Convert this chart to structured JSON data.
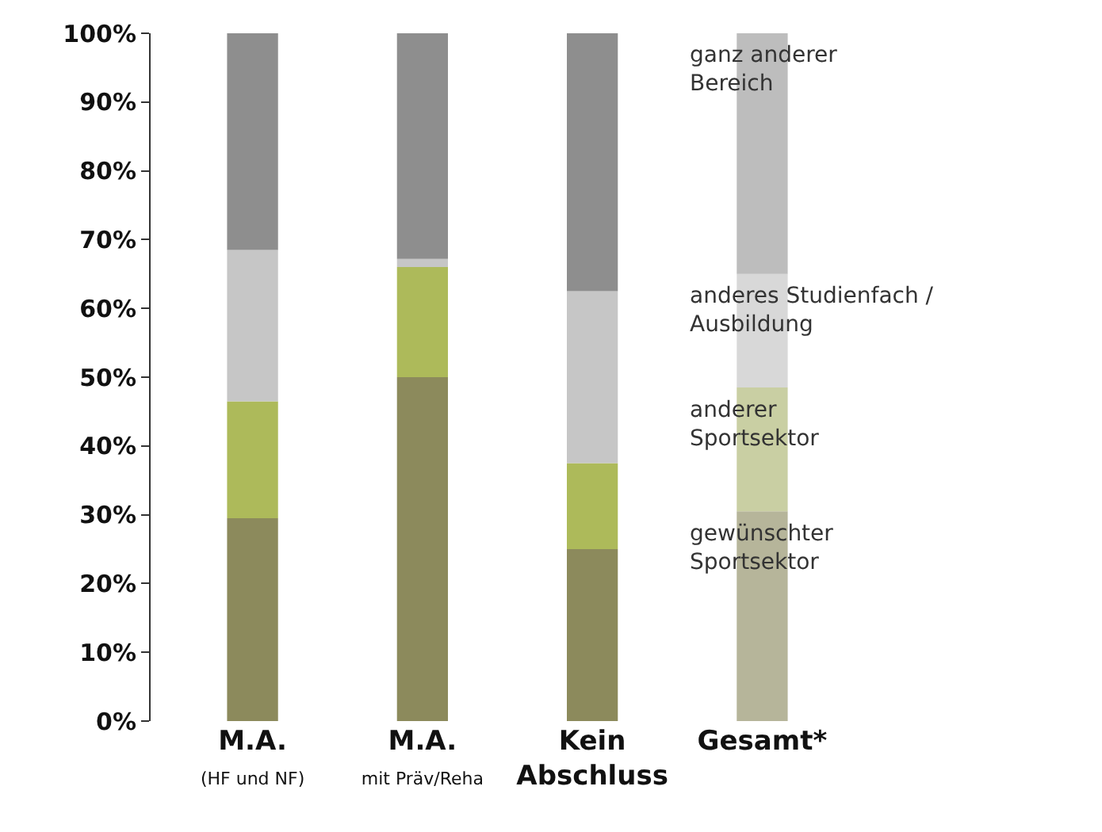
{
  "chart_data": {
    "type": "bar",
    "stacked": true,
    "legend": false,
    "categories": [
      "M.A.\n(HF und NF)",
      "M.A.\nmit Präv/Reha",
      "Kein\nAbschluss",
      "Gesamt*"
    ],
    "series": [
      {
        "name": "gewünschter\nSportsektor",
        "colors": [
          "#8c8a5c",
          "#8c8a5c",
          "#8c8a5c",
          "#b6b59a"
        ],
        "values": [
          29.5,
          50,
          25,
          30.5
        ]
      },
      {
        "name": "anderer\nSportsektor",
        "colors": [
          "#adba5a",
          "#adba5a",
          "#adba5a",
          "#c9cfa3"
        ],
        "values": [
          17,
          16,
          12.5,
          18
        ]
      },
      {
        "name": "anderes Studienfach /\nAusbildung",
        "colors": [
          "#c6c6c6",
          "#c6c6c6",
          "#c6c6c6",
          "#d8d8d8"
        ],
        "values": [
          22,
          1.2,
          25,
          16.5
        ]
      },
      {
        "name": "ganz anderer\nBereich",
        "colors": [
          "#8e8e8e",
          "#8e8e8e",
          "#8e8e8e",
          "#bdbdbd"
        ],
        "values": [
          31.5,
          32.8,
          37.5,
          35
        ]
      }
    ],
    "ylim": [
      0,
      100
    ],
    "yticks": [
      {
        "value": 0,
        "label": "0%"
      },
      {
        "value": 10,
        "label": "10%"
      },
      {
        "value": 20,
        "label": "20%"
      },
      {
        "value": 30,
        "label": "30%"
      },
      {
        "value": 40,
        "label": "40%"
      },
      {
        "value": 50,
        "label": "50%"
      },
      {
        "value": 60,
        "label": "60%"
      },
      {
        "value": 70,
        "label": "70%"
      },
      {
        "value": 80,
        "label": "80%"
      },
      {
        "value": 90,
        "label": "90%"
      },
      {
        "value": 100,
        "label": "100%"
      }
    ]
  }
}
